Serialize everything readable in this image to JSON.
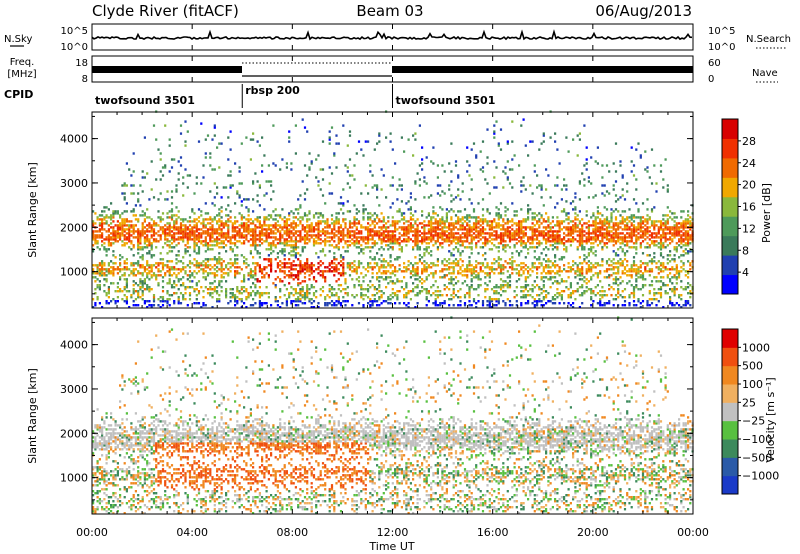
{
  "header": {
    "station": "Clyde River (fitACF)",
    "beam": "Beam 03",
    "date": "06/Aug/2013"
  },
  "strip_labels": {
    "nsky": "N.Sky",
    "nsearch": "N.Search",
    "freq_line1": "Freq.",
    "freq_line2": "[MHz]",
    "nave": "Nave",
    "cpid": "CPID"
  },
  "strip_ticks": {
    "noise_left": [
      "10^5",
      "10^0"
    ],
    "noise_right": [
      "10^5",
      "10^0"
    ],
    "freq_left": [
      "18",
      "8"
    ],
    "freq_right": [
      "60",
      "0"
    ]
  },
  "cpid_segments": [
    {
      "label": "twofsound 3501",
      "start_h": 0,
      "end_h": 6
    },
    {
      "label": "rbsp 200",
      "start_h": 6,
      "end_h": 12
    },
    {
      "label": "twofsound 3501",
      "start_h": 12,
      "end_h": 24
    }
  ],
  "chart_data": [
    {
      "type": "heatmap",
      "name": "power",
      "ylabel": "Slant Range [km]",
      "yticks": [
        1000,
        2000,
        3000,
        4000
      ],
      "ylim": [
        180,
        4600
      ],
      "colorbar_label": "Power [dB]",
      "colorbar_ticks": [
        "28",
        "24",
        "20",
        "16",
        "12",
        "8",
        "4"
      ],
      "colors": [
        "#0000ff",
        "#2040b0",
        "#3a7a5a",
        "#4e9a5a",
        "#8ab83c",
        "#f0a800",
        "#f06a00",
        "#f03000",
        "#d80000"
      ]
    },
    {
      "type": "heatmap",
      "name": "velocity",
      "ylabel": "Slant Range [km]",
      "yticks": [
        1000,
        2000,
        3000,
        4000
      ],
      "ylim": [
        180,
        4600
      ],
      "colorbar_label": "Velocity [m s⁻¹]",
      "colorbar_ticks": [
        "1000",
        "500",
        "100",
        "25",
        "−25",
        "−100",
        "−500",
        "−1000"
      ],
      "colors": [
        "#1a3ac8",
        "#2a5aa8",
        "#3c8a5c",
        "#58c040",
        "#c0c0c0",
        "#f0b060",
        "#f08820",
        "#f05010",
        "#e00000"
      ]
    }
  ],
  "x_axis": {
    "ticks": [
      "00:00",
      "04:00",
      "08:00",
      "12:00",
      "16:00",
      "20:00",
      "00:00"
    ],
    "xlim_h": [
      0,
      24
    ],
    "label": "Time UT"
  }
}
